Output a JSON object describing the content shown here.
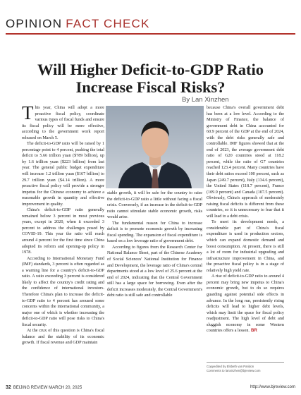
{
  "header": {
    "section": "OPINION",
    "subsection": "FACT CHECK"
  },
  "title_lines": [
    "Will Higher Deficit-to-GDP Ratio",
    "Increase Fiscal Risks?"
  ],
  "byline": "By Lan Xinzhen",
  "article": {
    "columns": [
      [
        "This year, China will adopt a more proactive fiscal policy, coordinate various types of fiscal funds and ensure its fiscal policy will be more effective, according to the government work report released on March 5.",
        "The deficit-to-GDP ratio will be raised by 1 percentage point to 4 percent, pushing the total deficit to 5.66 trillion yuan ($789 billion), up by 1.6 trillion yuan ($223 billion) from last year. The general public budget expenditure will increase 1.2 trillion yuan ($167 billion) to 29.7 trillion yuan ($4.14 trillion). A more proactive fiscal policy will provide a stronger impetus for the Chinese economy to achieve a reasonable growth in quantity and effective improvement in quality.",
        "China's deficit-to-GDP ratio generally remained below 3 percent in most previous years, except in 2020, when it exceeded 3 percent to address the challenges posed by COVID-19. This year the ratio will reach around 4 percent for the first time since China adopted its reform and opening-up policy in 1978.",
        "According to International Monetary Fund (IMF) standards, 3 percent is often regarded as a warning line for a country's deficit-to-GDP ratio. A ratio exceeding 3 percent is considered likely to affect the country's credit rating and the confidence of international investors. Therefore China's plan to increase the deficit-to-GDP ratio to 4 percent has aroused some concerns within the international community, a major one of which is whether increasing the deficit-to-GDP ratio will pose risks to China's fiscal security.",
        "At the crux of this question is China's fiscal balance and the stability of its economic growth. If fiscal revenue and GDP maintain"
      ],
      [
        "stable growth, it will be safe for the country to raise the deficit-to-GDP ratio a little without facing a fiscal crisis. Conversely, if an increase in the deficit-to-GDP ratio cannot stimulate stable economic growth, risks would arise.",
        "The fundamental reason for China to increase deficit is to promote economic growth by increasing fiscal spending. The expansion of fiscal expenditure is based on a low leverage ratio of government debt.",
        "According to figures from the Research Center for National Balance Sheet, part of the Chinese Academy of Social Sciences' National Institution for Finance and Development, the leverage ratio of China's central departments stood at a low level of 25.6 percent at the end of 2024, indicating that the Central Government still has a large space for borrowing. Even after the deficit increases moderately, the Central Government's debt ratio is still safe and controllable"
      ],
      [
        "because China's overall government debt has been at a low level. According to the Ministry of Finance, the balance of government debt in China accounted for 60.9 percent of the GDP at the end of 2024, with the debt risks generally safe and controllable. IMF figures showed that at the end of 2023, the average government debt ratio of G20 countries stood at 118.2 percent, while the ratio of G7 countries reached 123.4 percent. Many countries have their debt ratios exceed 100 percent, such as Japan (249.7 percent), Italy (134.6 percent), the United States (118.7 percent), France (109.9 percent) and Canada (107.5 percent). Obviously, China's approach of moderately raising fiscal deficits is different from these countries, so it is unnecessary to fear that it will lead to a debt crisis.",
        "To meet its development needs, a considerable part of China's fiscal expenditure is used in production sectors, which can expand domestic demand and boost consumption. At present, there is still a lot of room for industrial upgrading and infrastructure improvement in China, and the proactive fiscal policy is in a stage of relatively high yield rate.",
        "A rise of deficit-to-GDP ratio to around 4 percent may bring new impetus to China's economic growth, but to do so requires guarding against potential side effects in advance. In the long run, persistently rising deficits will lead to higher debt levels, which may limit the space for fiscal policy readjustment. The high level of debt and sluggish economy in some Western countries offers a lesson."
      ]
    ],
    "end_mark": "BR"
  },
  "credits": [
    "Copyedited by Elsbeth van Paridon",
    "Comments to lanxinzhen@bjreview.com"
  ],
  "footer": {
    "page": "32",
    "publication": "BEIJING REVIEW MARCH 20, 2025",
    "url": "http://www.bjreview.com"
  }
}
